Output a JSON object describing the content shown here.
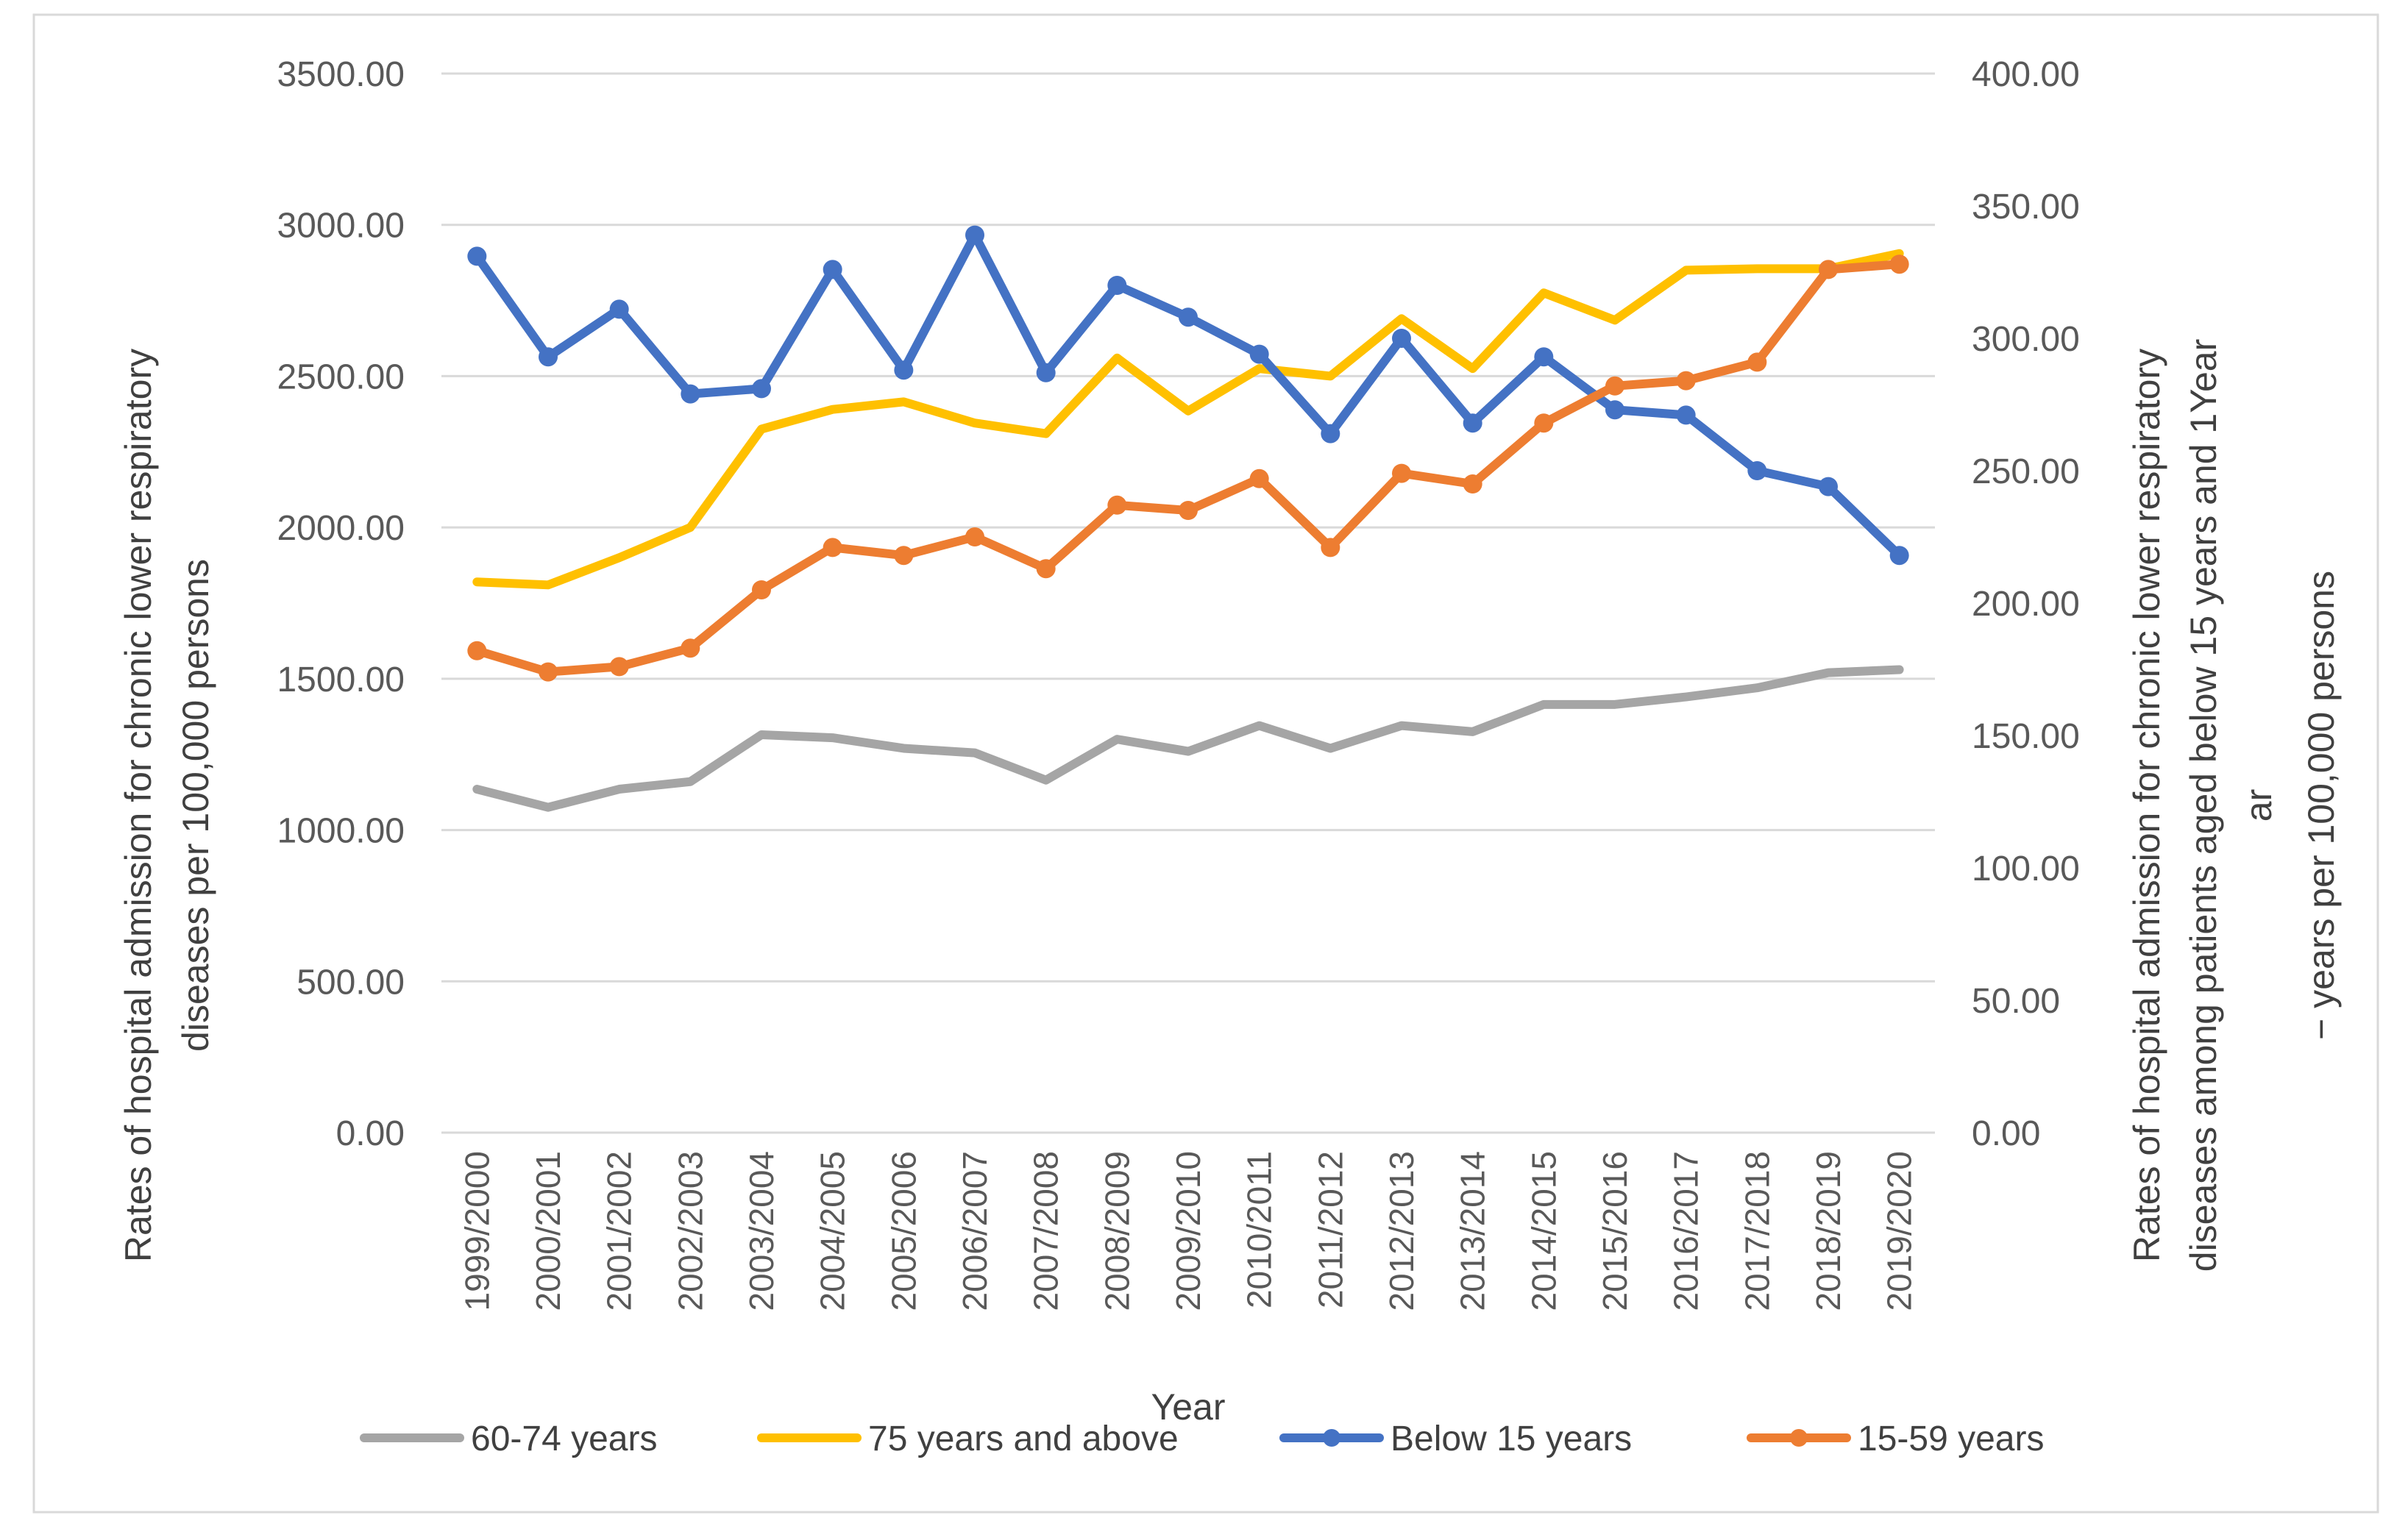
{
  "chart_data": {
    "type": "line",
    "title": "",
    "xlabel": "Year",
    "ylabel_left": "Rates of hospital admission for chronic lower respiratory diseases per 100,000 persons",
    "ylabel_left_lines": [
      "Rates of hospital admission for chronic lower respiratory",
      "diseases per 100,000 persons"
    ],
    "ylabel_right_lines": [
      "Rates of hospital admission for chronic lower respiratory",
      "diseases among patients aged below 15 years and 1Year",
      "ar",
      "− years per 100,000 persons"
    ],
    "ylim_left": [
      0,
      3500
    ],
    "ylim_right": [
      0,
      400
    ],
    "yticks_left": [
      "0.00",
      "500.00",
      "1000.00",
      "1500.00",
      "2000.00",
      "2500.00",
      "3000.00",
      "3500.00"
    ],
    "yticks_right": [
      "0.00",
      "50.00",
      "100.00",
      "150.00",
      "200.00",
      "250.00",
      "300.00",
      "350.00",
      "400.00"
    ],
    "grid": true,
    "legend_position": "bottom",
    "categories": [
      "1999/2000",
      "2000/2001",
      "2001/2002",
      "2002/2003",
      "2003/2004",
      "2004/2005",
      "2005/2006",
      "2006/2007",
      "2007/2008",
      "2008/2009",
      "2009/2010",
      "2010/2011",
      "2011/2012",
      "2012/2013",
      "2013/2014",
      "2014/2015",
      "2015/2016",
      "2016/2017",
      "2017/2018",
      "2018/2019",
      "2019/2020"
    ],
    "series": [
      {
        "name": "60-74 years",
        "axis": "left",
        "color": "#a5a5a5",
        "markers": false,
        "values": [
          1135,
          1075,
          1135,
          1160,
          1315,
          1305,
          1270,
          1255,
          1165,
          1300,
          1260,
          1345,
          1270,
          1345,
          1325,
          1415,
          1415,
          1440,
          1470,
          1520,
          1530
        ]
      },
      {
        "name": "75 years and above",
        "axis": "left",
        "color": "#ffc000",
        "markers": false,
        "values": [
          1820,
          1810,
          1900,
          2000,
          2325,
          2390,
          2415,
          2345,
          2310,
          2560,
          2385,
          2525,
          2500,
          2690,
          2525,
          2775,
          2685,
          2850,
          2855,
          2855,
          2905
        ]
      },
      {
        "name": "Below 15 years",
        "axis": "right",
        "color": "#4472c4",
        "markers": true,
        "values": [
          331,
          293,
          311,
          279,
          281,
          326,
          288,
          339,
          287,
          320,
          308,
          294,
          264,
          300,
          268,
          293,
          273,
          271,
          250,
          244,
          218
        ]
      },
      {
        "name": "15-59 years",
        "axis": "right",
        "color": "#ed7d31",
        "markers": true,
        "values": [
          182,
          174,
          176,
          183,
          205,
          221,
          218,
          225,
          213,
          237,
          235,
          247,
          221,
          249,
          245,
          268,
          282,
          284,
          291,
          326,
          328
        ]
      }
    ]
  }
}
